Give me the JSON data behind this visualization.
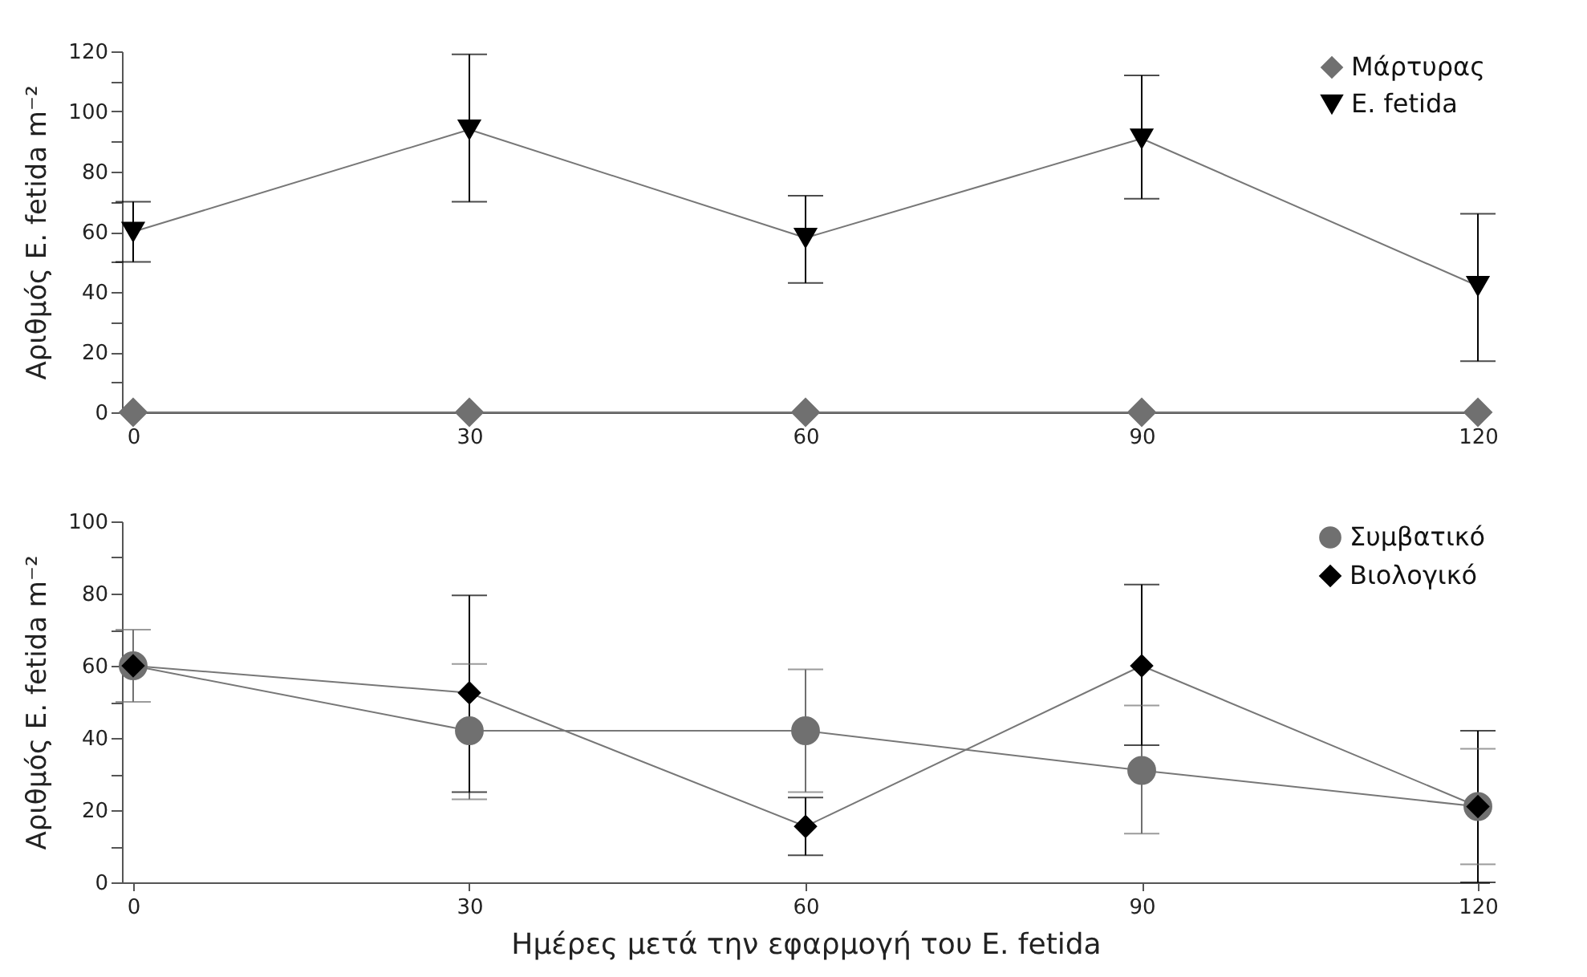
{
  "chart_data": [
    {
      "type": "line",
      "ylabel": "Αριθμός E. fetida m⁻²",
      "x": [
        0,
        30,
        60,
        90,
        120
      ],
      "xlim": [
        -1,
        121
      ],
      "xticks": [
        0,
        30,
        60,
        90,
        120
      ],
      "ylim": [
        0,
        120
      ],
      "yticks": [
        0,
        {
          "value": 10,
          "label": null
        },
        20,
        {
          "value": 30,
          "label": null
        },
        40,
        {
          "value": 50,
          "label": null
        },
        60,
        {
          "value": 70,
          "label": null
        },
        80,
        {
          "value": 90,
          "label": null
        },
        100,
        {
          "value": 110,
          "label": null
        },
        120
      ],
      "grid": false,
      "legend": "top right",
      "series": [
        {
          "name": "Μάρτυρας",
          "color": "#707070",
          "marker": "diamond",
          "values": [
            0,
            0,
            0,
            0,
            0
          ]
        },
        {
          "name": "E. fetida",
          "color": "#000000",
          "marker": "triangle",
          "values": [
            60,
            94,
            58,
            91,
            42
          ],
          "errors": [
            [
              50,
              70
            ],
            [
              70,
              119
            ],
            [
              43,
              72
            ],
            [
              71,
              112
            ],
            [
              17,
              66
            ]
          ]
        }
      ]
    },
    {
      "type": "line",
      "xlabel": "Ημέρες μετά την εφαρμογή του E. fetida",
      "ylabel": "Αριθμός E. fetida m⁻²",
      "x": [
        0,
        30,
        60,
        90,
        120
      ],
      "xlim": [
        -1,
        121
      ],
      "xticks": [
        0,
        30,
        60,
        90,
        120
      ],
      "ylim": [
        0,
        100
      ],
      "yticks": [
        0,
        {
          "value": 10,
          "label": null
        },
        20,
        {
          "value": 30,
          "label": null
        },
        40,
        {
          "value": 50,
          "label": null
        },
        60,
        {
          "value": 70,
          "label": null
        },
        80,
        {
          "value": 90,
          "label": null
        },
        100
      ],
      "grid": false,
      "legend": "top right",
      "series": [
        {
          "name": "Συμβατικό",
          "color": "#707070",
          "marker": "circle",
          "values": [
            60,
            42,
            42,
            31,
            21
          ],
          "errors": [
            [
              50,
              70
            ],
            [
              23,
              60.5
            ],
            [
              25,
              59
            ],
            [
              13.5,
              49
            ],
            [
              5,
              37
            ]
          ]
        },
        {
          "name": "Βιολογικό",
          "color": "#000000",
          "marker": "diamond",
          "values": [
            60,
            52.5,
            15.5,
            60,
            21
          ],
          "errors": [
            null,
            [
              25,
              79.5
            ],
            [
              7.5,
              23.5
            ],
            [
              38,
              82.5
            ],
            [
              0,
              42
            ]
          ]
        }
      ]
    }
  ]
}
